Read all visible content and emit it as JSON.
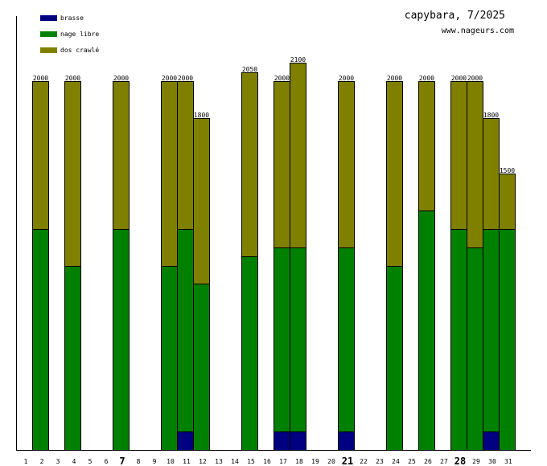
{
  "chart_data": {
    "type": "bar",
    "stacked": true,
    "title": "capybara, 7/2025",
    "subtitle": "www.nageurs.com",
    "xlabel": "",
    "ylabel": "",
    "ylim": [
      0,
      2000
    ],
    "grid": false,
    "legend_position": "top-left",
    "categories": [
      "1",
      "2",
      "3",
      "4",
      "5",
      "6",
      "7",
      "8",
      "9",
      "10",
      "11",
      "12",
      "13",
      "14",
      "15",
      "16",
      "17",
      "18",
      "19",
      "20",
      "21",
      "22",
      "23",
      "24",
      "25",
      "26",
      "27",
      "28",
      "29",
      "30",
      "31"
    ],
    "bold_categories": [
      "7",
      "21",
      "28"
    ],
    "series": [
      {
        "name": "brasse",
        "color": "#000080",
        "values": [
          0,
          0,
          0,
          0,
          0,
          0,
          0,
          0,
          0,
          0,
          100,
          0,
          0,
          0,
          0,
          0,
          100,
          100,
          0,
          0,
          100,
          0,
          0,
          0,
          0,
          0,
          0,
          0,
          0,
          100,
          0
        ]
      },
      {
        "name": "nage libre",
        "color": "#008000",
        "values": [
          0,
          1200,
          0,
          1000,
          0,
          0,
          1200,
          0,
          0,
          1000,
          1100,
          900,
          0,
          0,
          1050,
          0,
          1000,
          1000,
          0,
          0,
          1000,
          0,
          0,
          1000,
          0,
          1300,
          0,
          1200,
          1100,
          1100,
          1200
        ]
      },
      {
        "name": "dos crawlé",
        "color": "#808000",
        "values": [
          0,
          800,
          0,
          1000,
          0,
          0,
          800,
          0,
          0,
          1000,
          800,
          900,
          0,
          0,
          1000,
          0,
          900,
          1000,
          0,
          0,
          900,
          0,
          0,
          1000,
          0,
          700,
          0,
          800,
          900,
          600,
          300
        ]
      }
    ],
    "totals": [
      "",
      "2000",
      "",
      "2000",
      "",
      "",
      "2000",
      "",
      "",
      "2000",
      "2000",
      "1800",
      "",
      "",
      "2050",
      "",
      "2000",
      "2100",
      "",
      "",
      "2000",
      "",
      "",
      "2000",
      "",
      "2000",
      "",
      "2000",
      "2000",
      "1800",
      "1500"
    ]
  }
}
